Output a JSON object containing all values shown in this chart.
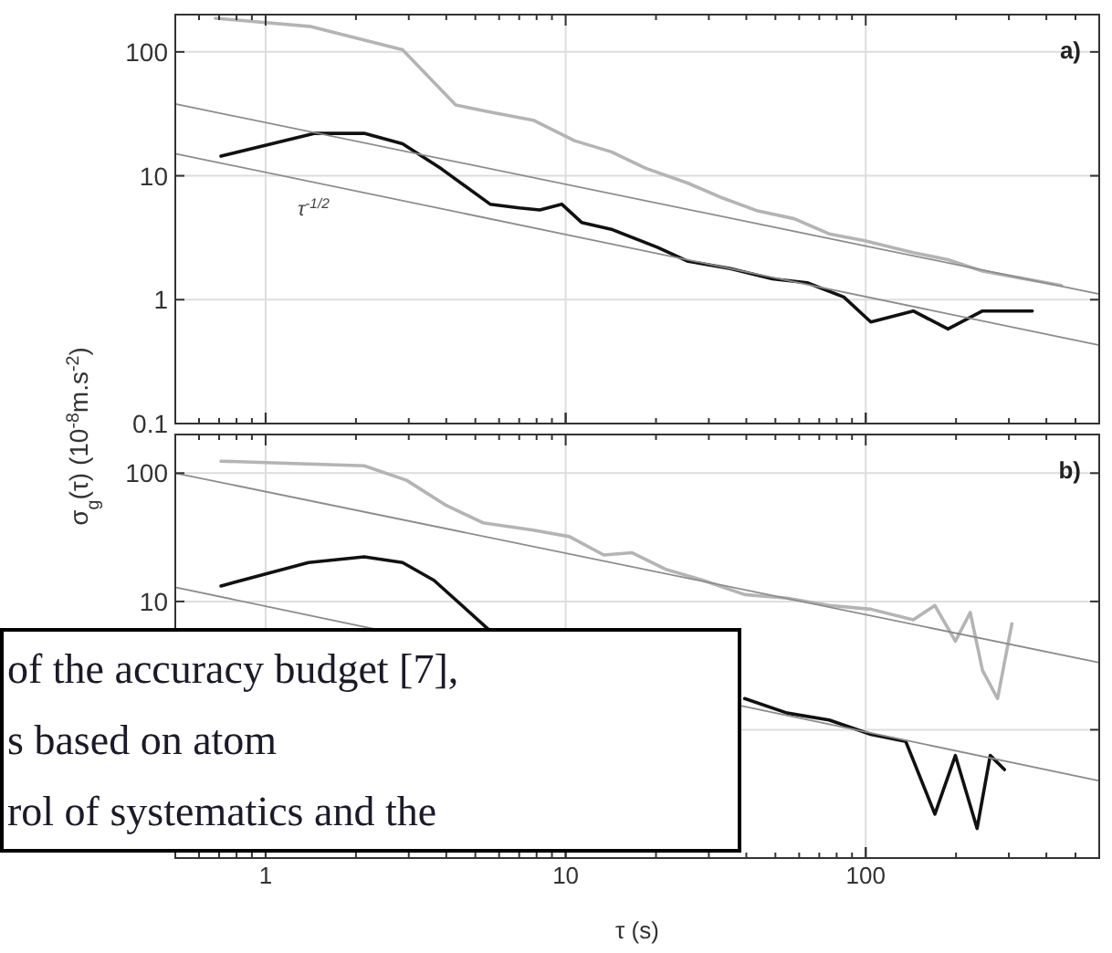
{
  "chart_data": [
    {
      "type": "line",
      "title": "a)",
      "ylabel": "σ$_{g}$(τ) (10$^{-8}$m.s$^{-2}$)",
      "log": "xy",
      "grid": true,
      "tick_labels": "y",
      "xlim": [
        0.5,
        600
      ],
      "xticks": [
        1,
        10,
        100
      ],
      "ylim": [
        0.1,
        200
      ],
      "yticks": [
        0.1,
        1,
        10,
        100
      ],
      "annotations": [
        "τ$^{-1/2}$"
      ],
      "series": [
        {
          "color": "#b4b4b4",
          "x": [
            0.68,
            1.42,
            2.86,
            4.3,
            5.6,
            7.8,
            10.7,
            14.2,
            18.5,
            25.6,
            33.4,
            43.7,
            57.8,
            75.5,
            98.6,
            144,
            188,
            245,
            325,
            449
          ],
          "values": [
            187,
            160,
            104,
            37.3,
            32.7,
            28.1,
            19.2,
            15.6,
            11.5,
            8.7,
            6.6,
            5.2,
            4.5,
            3.4,
            3.0,
            2.4,
            2.1,
            1.7,
            1.5,
            1.3
          ]
        },
        {
          "color": "#111111",
          "x": [
            0.71,
            1.46,
            2.13,
            2.86,
            3.85,
            5.6,
            7.0,
            8.2,
            9.7,
            11.3,
            14.2,
            20.2,
            25.6,
            35.4,
            48.9,
            63.8,
            84.5,
            104,
            144,
            188,
            245,
            359
          ],
          "values": [
            14.4,
            22,
            22,
            18.1,
            11.4,
            5.9,
            5.5,
            5.3,
            5.9,
            4.2,
            3.7,
            2.65,
            2.04,
            1.78,
            1.47,
            1.37,
            1.05,
            0.66,
            0.81,
            0.58,
            0.81,
            0.81
          ]
        },
        {
          "color": "#8c8c8c",
          "x": [
            0.5,
            600
          ],
          "values": [
            38,
            1.11
          ]
        },
        {
          "color": "#8c8c8c",
          "x": [
            0.5,
            600
          ],
          "values": [
            15.1,
            0.43
          ]
        }
      ]
    },
    {
      "type": "line",
      "title": "b)",
      "xlabel": "τ (s)",
      "log": "xy",
      "grid": true,
      "xlim": [
        0.5,
        600
      ],
      "xticks": [
        1,
        10,
        100
      ],
      "ylim": [
        0.1,
        200
      ],
      "yticks": [
        {
          "value": 0.1,
          "label": null
        },
        {
          "value": 1,
          "label": null
        },
        10,
        100
      ],
      "annotations": [
        "of the accuracy budget [7],",
        "s based on atom",
        "rol of systematics and the"
      ],
      "series": [
        {
          "color": "#b4b4b4",
          "x": [
            0.71,
            2.13,
            2.95,
            4.0,
            5.3,
            7.8,
            10.3,
            13.4,
            16.6,
            21.7,
            28.7,
            39.5,
            54.7,
            75.5,
            104,
            144,
            170,
            199,
            223,
            245,
            275,
            307
          ],
          "values": [
            124,
            114,
            88,
            56,
            41,
            36,
            32,
            23,
            24,
            17.7,
            14.6,
            11.3,
            10.6,
            9.3,
            8.7,
            7.2,
            9.3,
            4.9,
            8.2,
            2.9,
            1.75,
            6.7
          ]
        },
        {
          "color": "#111111",
          "x": [
            0.71,
            1.39,
            2.13,
            2.86,
            3.64,
            5.6,
            20,
            39.5,
            54.7,
            75.5,
            104,
            136,
            170,
            199,
            235,
            260,
            290
          ],
          "values": [
            13.2,
            20.1,
            22.3,
            20.1,
            14.6,
            5.9,
            null,
            1.75,
            1.35,
            1.19,
            0.92,
            0.81,
            0.22,
            0.63,
            0.17,
            0.63,
            0.49
          ]
        },
        {
          "color": "#8c8c8c",
          "x": [
            0.5,
            600
          ],
          "values": [
            100,
            3.34
          ]
        },
        {
          "color": "#8c8c8c",
          "x": [
            0.5,
            600
          ],
          "values": [
            12.9,
            0.4
          ]
        }
      ]
    }
  ]
}
